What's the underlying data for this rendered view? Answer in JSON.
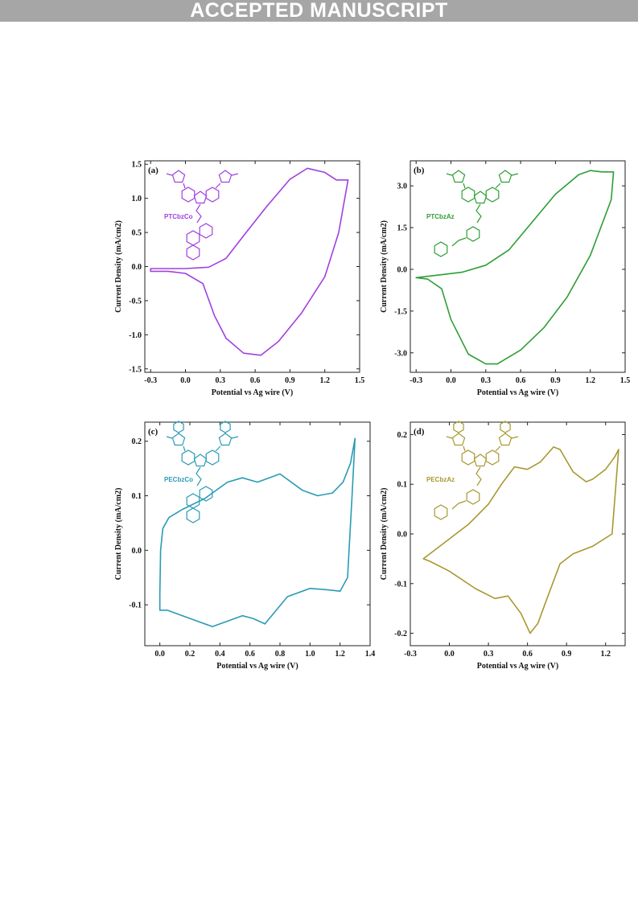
{
  "header": {
    "banner": "ACCEPTED MANUSCRIPT"
  },
  "chart_data": [
    {
      "type": "line",
      "panel_label": "(a)",
      "compound": "PTCbzCo",
      "color": "#a040e0",
      "xlabel": "Potential vs Ag wire (V)",
      "ylabel": "Current Density (mA/cm2)",
      "xlim": [
        -0.35,
        1.5
      ],
      "ylim": [
        -1.55,
        1.55
      ],
      "xticks": [
        "-0.3",
        "0.0",
        "0.3",
        "0.6",
        "0.9",
        "1.2",
        "1.5"
      ],
      "yticks": [
        "-1.5",
        "-1.0",
        "-0.5",
        "0.0",
        "0.5",
        "1.0",
        "1.5"
      ],
      "x": [
        -0.3,
        0.0,
        0.2,
        0.35,
        0.5,
        0.7,
        0.9,
        1.05,
        1.2,
        1.3,
        1.38,
        1.4,
        1.32,
        1.2,
        1.0,
        0.8,
        0.65,
        0.5,
        0.35,
        0.25,
        0.15,
        0.0,
        -0.15,
        -0.3
      ],
      "y": [
        -0.03,
        -0.03,
        -0.01,
        0.12,
        0.45,
        0.88,
        1.28,
        1.44,
        1.38,
        1.27,
        1.27,
        1.27,
        0.5,
        -0.15,
        -0.68,
        -1.1,
        -1.3,
        -1.27,
        -1.05,
        -0.72,
        -0.25,
        -0.1,
        -0.07,
        -0.07
      ]
    },
    {
      "type": "line",
      "panel_label": "(b)",
      "compound": "PTCbzAz",
      "color": "#2e9e35",
      "xlabel": "Potential vs Ag wire (V)",
      "ylabel": "Current Density (mA/cm2)",
      "xlim": [
        -0.35,
        1.5
      ],
      "ylim": [
        -3.7,
        3.9
      ],
      "xticks": [
        "-0.3",
        "0.0",
        "0.3",
        "0.6",
        "0.9",
        "1.2",
        "1.5"
      ],
      "yticks": [
        "-3.0",
        "-1.5",
        "0.0",
        "1.5",
        "3.0"
      ],
      "x": [
        -0.3,
        -0.1,
        0.1,
        0.3,
        0.5,
        0.7,
        0.9,
        1.1,
        1.2,
        1.3,
        1.4,
        1.38,
        1.2,
        1.0,
        0.8,
        0.6,
        0.4,
        0.3,
        0.15,
        0.0,
        -0.08,
        -0.2,
        -0.3
      ],
      "y": [
        -0.3,
        -0.2,
        -0.1,
        0.15,
        0.7,
        1.7,
        2.7,
        3.4,
        3.55,
        3.5,
        3.5,
        2.5,
        0.5,
        -1.0,
        -2.1,
        -2.9,
        -3.4,
        -3.4,
        -3.05,
        -1.8,
        -0.7,
        -0.35,
        -0.3
      ]
    },
    {
      "type": "line",
      "panel_label": "(c)",
      "compound": "PECbzCo",
      "color": "#2a9bb5",
      "xlabel": "Potential vs Ag wire (V)",
      "ylabel": "Current Density (mA/cm2)",
      "xlim": [
        -0.1,
        1.4
      ],
      "ylim": [
        -0.175,
        0.235
      ],
      "xticks": [
        "0.0",
        "0.2",
        "0.4",
        "0.6",
        "0.8",
        "1.0",
        "1.2",
        "1.4"
      ],
      "yticks": [
        "-0.1",
        "0.0",
        "0.1",
        "0.2"
      ],
      "x": [
        0.0,
        0.005,
        0.02,
        0.06,
        0.15,
        0.3,
        0.45,
        0.55,
        0.65,
        0.8,
        0.95,
        1.05,
        1.15,
        1.22,
        1.27,
        1.3,
        1.28,
        1.25,
        1.2,
        1.1,
        1.0,
        0.85,
        0.7,
        0.62,
        0.55,
        0.45,
        0.35,
        0.2,
        0.05,
        0.0
      ],
      "y": [
        -0.08,
        0.0,
        0.04,
        0.06,
        0.075,
        0.095,
        0.125,
        0.133,
        0.125,
        0.14,
        0.11,
        0.1,
        0.105,
        0.125,
        0.16,
        0.205,
        0.1,
        -0.05,
        -0.075,
        -0.072,
        -0.07,
        -0.085,
        -0.135,
        -0.125,
        -0.12,
        -0.13,
        -0.14,
        -0.125,
        -0.11,
        -0.11
      ]
    },
    {
      "type": "line",
      "panel_label": "(d)",
      "compound": "PECbzAz",
      "color": "#a89830",
      "xlabel": "Potential vs Ag wire (V)",
      "ylabel": "Current Density (mA/cm2)",
      "xlim": [
        -0.3,
        1.35
      ],
      "ylim": [
        -0.225,
        0.225
      ],
      "xticks": [
        "-0.3",
        "0.0",
        "0.3",
        "0.6",
        "0.9",
        "1.2"
      ],
      "yticks": [
        "-0.2",
        "-0.1",
        "0.0",
        "0.1",
        "0.2"
      ],
      "x": [
        -0.2,
        -0.05,
        0.15,
        0.3,
        0.4,
        0.5,
        0.6,
        0.7,
        0.8,
        0.85,
        0.95,
        1.05,
        1.1,
        1.2,
        1.27,
        1.3,
        1.25,
        1.1,
        0.95,
        0.85,
        0.75,
        0.68,
        0.62,
        0.55,
        0.45,
        0.35,
        0.2,
        0.0,
        -0.15,
        -0.2
      ],
      "y": [
        -0.05,
        -0.02,
        0.02,
        0.06,
        0.1,
        0.135,
        0.13,
        0.145,
        0.175,
        0.17,
        0.125,
        0.105,
        0.11,
        0.13,
        0.155,
        0.17,
        0.0,
        -0.025,
        -0.04,
        -0.06,
        -0.13,
        -0.18,
        -0.2,
        -0.16,
        -0.125,
        -0.13,
        -0.11,
        -0.075,
        -0.055,
        -0.05
      ]
    }
  ]
}
